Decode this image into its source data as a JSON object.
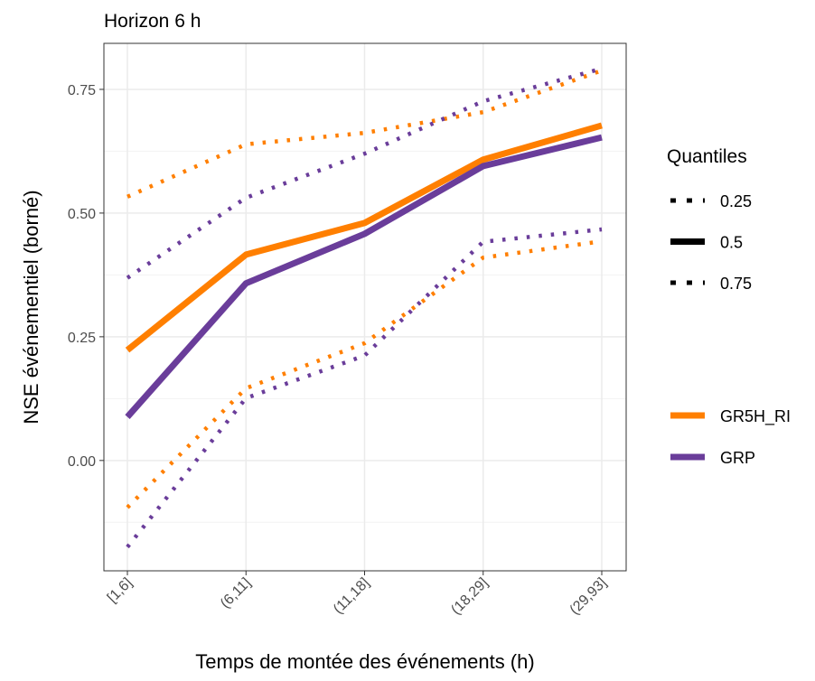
{
  "chart_data": {
    "type": "line",
    "title": "Horizon 6 h",
    "x_label": "Temps de montée des événements (h)",
    "y_label": "NSE événementiel (borné)",
    "categories": [
      "[1,6]",
      "(6,11]",
      "(11,18]",
      "(18,29]",
      "(29,93]"
    ],
    "ylim": [
      -0.223,
      0.843
    ],
    "yticks": [
      {
        "value": 0,
        "label": "0.00"
      },
      0.25,
      {
        "value": 0.5,
        "label": "0.50"
      },
      0.75
    ],
    "grid": true,
    "linetype_legend": {
      "title": "Quantiles",
      "entries": [
        {
          "name": "0.25",
          "dotted": true
        },
        {
          "name": "0.5",
          "dotted": false
        },
        {
          "name": "0.75",
          "dotted": true
        }
      ]
    },
    "series": [
      {
        "name": "GR5H_RI",
        "color": "#ff7f00",
        "quantile_values": [
          [
            -0.095,
            0.146,
            0.237,
            0.41,
            0.443
          ],
          [
            0.223,
            0.416,
            0.48,
            0.608,
            0.677
          ],
          [
            0.533,
            0.639,
            0.662,
            0.704,
            0.788
          ]
        ]
      },
      {
        "name": "GRP",
        "color": "#6a3d9a",
        "quantile_values": [
          [
            -0.175,
            0.126,
            0.212,
            0.442,
            0.467
          ],
          [
            0.088,
            0.358,
            0.458,
            0.595,
            0.653
          ],
          [
            0.369,
            0.531,
            0.62,
            0.726,
            0.792
          ]
        ]
      }
    ]
  }
}
